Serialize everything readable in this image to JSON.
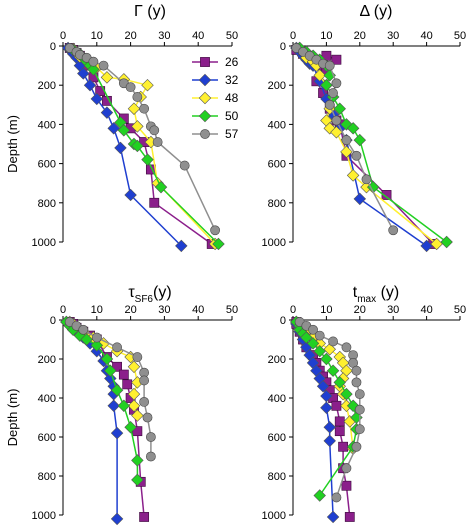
{
  "chart_data": [
    {
      "type": "line",
      "title": "Γ (y)",
      "ylabel": "Depth (m)",
      "xlim": [
        0,
        50
      ],
      "ylim": [
        1000,
        0
      ],
      "xticks": [
        0,
        10,
        20,
        30,
        40,
        50
      ],
      "yticks": [
        0,
        200,
        400,
        600,
        800,
        1000
      ],
      "legend": {
        "placement": "right",
        "entries": [
          "26",
          "32",
          "48",
          "50",
          "57"
        ]
      },
      "series": [
        {
          "name": "26",
          "color": "#8B1F8B",
          "marker": "square",
          "x": [
            2,
            3,
            4,
            5,
            7,
            9,
            11,
            13,
            18,
            20,
            24,
            26,
            27,
            44
          ],
          "y": [
            10,
            20,
            35,
            50,
            100,
            160,
            230,
            280,
            370,
            420,
            490,
            630,
            800,
            1010
          ]
        },
        {
          "name": "32",
          "color": "#1F3FD0",
          "marker": "diamond",
          "x": [
            1.5,
            2.5,
            3,
            4,
            5,
            6,
            8,
            10,
            13,
            15,
            17,
            20,
            35
          ],
          "y": [
            10,
            25,
            40,
            60,
            100,
            140,
            200,
            270,
            340,
            420,
            520,
            760,
            1020
          ]
        },
        {
          "name": "48",
          "color": "#FFF030",
          "marker": "diamond",
          "x": [
            3,
            4,
            5,
            8,
            10,
            13,
            18,
            25,
            23,
            21,
            22,
            26,
            28,
            45
          ],
          "y": [
            15,
            30,
            55,
            90,
            110,
            160,
            170,
            200,
            260,
            320,
            410,
            490,
            700,
            1010
          ]
        },
        {
          "name": "50",
          "color": "#22D022",
          "marker": "diamond",
          "x": [
            3,
            5,
            6,
            7,
            8,
            9,
            17,
            18,
            21,
            22,
            25,
            29,
            46
          ],
          "y": [
            20,
            40,
            60,
            80,
            100,
            120,
            390,
            430,
            500,
            510,
            580,
            720,
            1010
          ]
        },
        {
          "name": "57",
          "color": "#8F8F8F",
          "marker": "circle",
          "x": [
            2,
            4,
            5,
            7,
            9,
            12,
            18,
            20,
            22,
            24,
            26,
            27,
            28,
            36,
            45
          ],
          "y": [
            10,
            30,
            45,
            60,
            80,
            100,
            190,
            210,
            260,
            320,
            410,
            430,
            490,
            610,
            940
          ]
        }
      ]
    },
    {
      "type": "line",
      "title": "Δ (y)",
      "xlim": [
        0,
        50
      ],
      "ylim": [
        1000,
        0
      ],
      "xticks": [
        0,
        10,
        20,
        30,
        40,
        50
      ],
      "yticks": [
        0,
        200,
        400,
        600,
        800,
        1000
      ],
      "series": [
        {
          "name": "26",
          "color": "#8B1F8B",
          "marker": "square",
          "x": [
            1,
            3,
            5,
            8,
            10,
            13,
            9,
            10,
            7,
            9,
            11,
            13,
            14,
            16,
            28,
            42
          ],
          "y": [
            20,
            40,
            60,
            80,
            50,
            70,
            100,
            130,
            180,
            240,
            320,
            380,
            400,
            560,
            760,
            1010
          ]
        },
        {
          "name": "32",
          "color": "#1F3FD0",
          "marker": "diamond",
          "x": [
            1,
            2,
            3,
            4,
            5,
            6,
            8,
            10,
            12,
            14,
            16,
            20,
            40
          ],
          "y": [
            10,
            30,
            50,
            70,
            90,
            100,
            180,
            270,
            350,
            420,
            480,
            780,
            1020
          ]
        },
        {
          "name": "48",
          "color": "#FFF030",
          "marker": "diamond",
          "x": [
            2,
            3,
            4,
            6,
            7,
            8,
            10,
            12,
            11,
            10,
            11,
            13,
            16,
            18,
            22,
            43
          ],
          "y": [
            10,
            30,
            60,
            80,
            100,
            150,
            200,
            260,
            320,
            380,
            420,
            440,
            540,
            660,
            720,
            1010
          ]
        },
        {
          "name": "50",
          "color": "#22D022",
          "marker": "diamond",
          "x": [
            2,
            4,
            6,
            8,
            10,
            11,
            10,
            12,
            14,
            16,
            18,
            20,
            24,
            46
          ],
          "y": [
            10,
            30,
            50,
            70,
            100,
            150,
            200,
            260,
            320,
            400,
            420,
            480,
            720,
            1000
          ]
        },
        {
          "name": "57",
          "color": "#8F8F8F",
          "marker": "circle",
          "x": [
            1,
            3,
            5,
            7,
            9,
            11,
            13,
            12,
            11,
            13,
            16,
            19,
            22,
            30
          ],
          "y": [
            10,
            30,
            50,
            70,
            90,
            100,
            190,
            240,
            300,
            380,
            480,
            560,
            680,
            940
          ]
        }
      ]
    },
    {
      "type": "line",
      "title": "τSF6(y)",
      "title_main": "τ",
      "title_sub": "SF6",
      "title_tail": "(y)",
      "ylabel": "Depth (m)",
      "xlim": [
        0,
        50
      ],
      "ylim": [
        1000,
        0
      ],
      "xticks": [
        0,
        10,
        20,
        30,
        40,
        50
      ],
      "yticks": [
        0,
        200,
        400,
        600,
        800,
        1000
      ],
      "series": [
        {
          "name": "26",
          "color": "#8B1F8B",
          "marker": "square",
          "x": [
            2,
            3,
            4,
            6,
            8,
            10,
            13,
            16,
            18,
            19,
            20,
            21,
            22,
            23,
            24
          ],
          "y": [
            10,
            20,
            40,
            60,
            80,
            100,
            190,
            240,
            280,
            330,
            400,
            460,
            570,
            830,
            1010
          ]
        },
        {
          "name": "32",
          "color": "#1F3FD0",
          "marker": "diamond",
          "x": [
            1,
            2,
            3,
            4,
            6,
            8,
            10,
            12,
            13,
            14,
            15,
            15,
            15,
            16,
            16
          ],
          "y": [
            10,
            20,
            40,
            60,
            90,
            120,
            160,
            210,
            260,
            300,
            340,
            380,
            440,
            580,
            1020
          ]
        },
        {
          "name": "48",
          "color": "#FFF030",
          "marker": "diamond",
          "x": [
            2,
            3,
            4,
            6,
            9,
            12,
            16,
            20,
            21,
            22,
            21,
            21,
            22
          ],
          "y": [
            10,
            20,
            40,
            60,
            90,
            120,
            160,
            190,
            240,
            320,
            380,
            440,
            490
          ]
        },
        {
          "name": "50",
          "color": "#22D022",
          "marker": "diamond",
          "x": [
            1,
            2,
            3,
            5,
            7,
            10,
            13,
            14,
            16,
            18,
            20,
            22,
            22
          ],
          "y": [
            10,
            30,
            50,
            80,
            100,
            130,
            200,
            260,
            360,
            440,
            550,
            720,
            820
          ]
        },
        {
          "name": "57",
          "color": "#8F8F8F",
          "marker": "circle",
          "x": [
            2,
            4,
            6,
            10,
            16,
            22,
            24,
            24,
            24,
            25,
            26,
            26
          ],
          "y": [
            10,
            30,
            50,
            90,
            140,
            190,
            270,
            310,
            420,
            500,
            600,
            700
          ]
        }
      ]
    },
    {
      "type": "line",
      "title": "tmax (y)",
      "title_main": "t",
      "title_sub": "max",
      "title_tail": " (y)",
      "xlim": [
        0,
        50
      ],
      "ylim": [
        1000,
        0
      ],
      "xticks": [
        0,
        10,
        20,
        30,
        40,
        50
      ],
      "yticks": [
        0,
        200,
        400,
        600,
        800,
        1000
      ],
      "series": [
        {
          "name": "26",
          "color": "#8B1F8B",
          "marker": "square",
          "x": [
            1,
            1,
            2,
            2,
            3,
            4,
            6,
            7,
            8,
            9,
            10,
            11,
            12,
            13,
            14,
            14,
            15,
            15,
            16,
            17
          ],
          "y": [
            10,
            20,
            40,
            60,
            100,
            140,
            180,
            220,
            260,
            290,
            320,
            360,
            400,
            440,
            520,
            570,
            650,
            760,
            850,
            1010
          ]
        },
        {
          "name": "32",
          "color": "#1F3FD0",
          "marker": "diamond",
          "x": [
            1,
            1,
            2,
            2,
            3,
            4,
            5,
            6,
            7,
            8,
            9,
            10,
            10,
            11,
            11,
            12
          ],
          "y": [
            10,
            20,
            40,
            60,
            100,
            140,
            180,
            220,
            260,
            300,
            340,
            390,
            450,
            550,
            620,
            1010
          ]
        },
        {
          "name": "48",
          "color": "#FFF030",
          "marker": "diamond",
          "x": [
            1,
            2,
            3,
            4,
            6,
            8,
            11,
            14,
            15,
            16,
            15,
            14,
            15,
            16,
            17,
            18
          ],
          "y": [
            10,
            20,
            40,
            60,
            90,
            120,
            150,
            190,
            220,
            260,
            300,
            340,
            380,
            440,
            520,
            660
          ]
        },
        {
          "name": "50",
          "color": "#22D022",
          "marker": "diamond",
          "x": [
            1,
            2,
            2,
            3,
            4,
            6,
            8,
            10,
            12,
            14,
            16,
            18,
            19,
            19,
            18,
            8
          ],
          "y": [
            10,
            30,
            50,
            70,
            90,
            120,
            160,
            200,
            260,
            320,
            380,
            440,
            500,
            560,
            650,
            900
          ]
        },
        {
          "name": "57",
          "color": "#8F8F8F",
          "marker": "circle",
          "x": [
            2,
            4,
            6,
            8,
            12,
            16,
            18,
            18,
            19,
            19,
            20,
            20,
            20,
            19,
            16,
            13
          ],
          "y": [
            10,
            30,
            50,
            80,
            110,
            140,
            180,
            220,
            260,
            320,
            380,
            460,
            560,
            650,
            760,
            910
          ]
        }
      ]
    }
  ]
}
